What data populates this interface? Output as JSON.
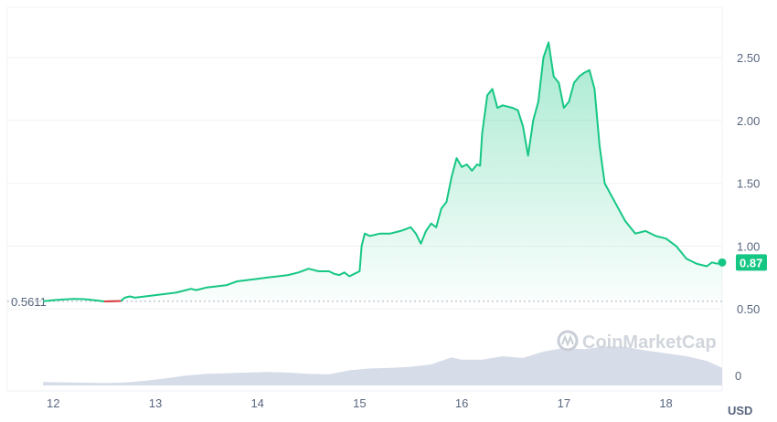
{
  "colors": {
    "up": "#16c784",
    "down": "#ea3943",
    "fill_top": "#16c784",
    "volume": "#cfd6e4",
    "grid": "#eff2f5",
    "axis_text": "#58667e",
    "watermark": "#c9ced6"
  },
  "watermark": {
    "text": "CoinMarketCap",
    "icon": "coinmarketcap-logo-icon"
  },
  "chart_data": {
    "type": "area",
    "currency_label": "USD",
    "open_price": 0.5611,
    "open_price_label": "0.5611",
    "current_price": 0.87,
    "current_price_label": "0.87",
    "x_ticks": [
      {
        "value": 12,
        "label": "12"
      },
      {
        "value": 13,
        "label": "13"
      },
      {
        "value": 14,
        "label": "14"
      },
      {
        "value": 15,
        "label": "15"
      },
      {
        "value": 16,
        "label": "16"
      },
      {
        "value": 17,
        "label": "17"
      },
      {
        "value": 18,
        "label": "18"
      }
    ],
    "y_ticks": [
      {
        "value": 0.5,
        "label": "0.50"
      },
      {
        "value": 1.0,
        "label": "1.00"
      },
      {
        "value": 1.5,
        "label": "1.50"
      },
      {
        "value": 2.0,
        "label": "2.00"
      },
      {
        "value": 2.5,
        "label": "2.50"
      }
    ],
    "volume_axis_label": "0",
    "xlim": [
      11.55,
      18.55
    ],
    "ylim": [
      0.4,
      2.9
    ],
    "grid": true,
    "price": [
      [
        11.9,
        0.5611
      ],
      [
        11.95,
        0.565
      ],
      [
        12.0,
        0.57
      ],
      [
        12.1,
        0.575
      ],
      [
        12.2,
        0.58
      ],
      [
        12.3,
        0.578
      ],
      [
        12.4,
        0.57
      ],
      [
        12.5,
        0.56
      ],
      [
        12.6,
        0.562
      ],
      [
        12.66,
        0.563
      ],
      [
        12.7,
        0.59
      ],
      [
        12.75,
        0.6
      ],
      [
        12.8,
        0.59
      ],
      [
        12.9,
        0.6
      ],
      [
        13.0,
        0.61
      ],
      [
        13.1,
        0.62
      ],
      [
        13.2,
        0.63
      ],
      [
        13.3,
        0.65
      ],
      [
        13.35,
        0.66
      ],
      [
        13.4,
        0.65
      ],
      [
        13.5,
        0.67
      ],
      [
        13.6,
        0.68
      ],
      [
        13.7,
        0.69
      ],
      [
        13.8,
        0.72
      ],
      [
        13.9,
        0.73
      ],
      [
        14.0,
        0.74
      ],
      [
        14.1,
        0.75
      ],
      [
        14.2,
        0.76
      ],
      [
        14.3,
        0.77
      ],
      [
        14.4,
        0.79
      ],
      [
        14.5,
        0.82
      ],
      [
        14.6,
        0.8
      ],
      [
        14.7,
        0.8
      ],
      [
        14.75,
        0.78
      ],
      [
        14.8,
        0.77
      ],
      [
        14.85,
        0.79
      ],
      [
        14.9,
        0.76
      ],
      [
        14.95,
        0.78
      ],
      [
        15.0,
        0.8
      ],
      [
        15.02,
        1.0
      ],
      [
        15.05,
        1.1
      ],
      [
        15.1,
        1.08
      ],
      [
        15.2,
        1.1
      ],
      [
        15.3,
        1.1
      ],
      [
        15.4,
        1.12
      ],
      [
        15.5,
        1.15
      ],
      [
        15.55,
        1.1
      ],
      [
        15.6,
        1.02
      ],
      [
        15.65,
        1.12
      ],
      [
        15.7,
        1.18
      ],
      [
        15.75,
        1.15
      ],
      [
        15.8,
        1.3
      ],
      [
        15.85,
        1.35
      ],
      [
        15.9,
        1.55
      ],
      [
        15.95,
        1.7
      ],
      [
        16.0,
        1.63
      ],
      [
        16.05,
        1.65
      ],
      [
        16.1,
        1.6
      ],
      [
        16.15,
        1.65
      ],
      [
        16.18,
        1.64
      ],
      [
        16.2,
        1.9
      ],
      [
        16.25,
        2.2
      ],
      [
        16.3,
        2.25
      ],
      [
        16.35,
        2.1
      ],
      [
        16.4,
        2.12
      ],
      [
        16.5,
        2.1
      ],
      [
        16.55,
        2.08
      ],
      [
        16.6,
        1.95
      ],
      [
        16.65,
        1.72
      ],
      [
        16.7,
        2.0
      ],
      [
        16.75,
        2.15
      ],
      [
        16.8,
        2.5
      ],
      [
        16.85,
        2.62
      ],
      [
        16.9,
        2.35
      ],
      [
        16.95,
        2.3
      ],
      [
        17.0,
        2.1
      ],
      [
        17.05,
        2.15
      ],
      [
        17.1,
        2.3
      ],
      [
        17.15,
        2.35
      ],
      [
        17.2,
        2.38
      ],
      [
        17.25,
        2.4
      ],
      [
        17.3,
        2.25
      ],
      [
        17.35,
        1.8
      ],
      [
        17.4,
        1.5
      ],
      [
        17.5,
        1.35
      ],
      [
        17.6,
        1.2
      ],
      [
        17.7,
        1.1
      ],
      [
        17.8,
        1.12
      ],
      [
        17.9,
        1.08
      ],
      [
        18.0,
        1.06
      ],
      [
        18.1,
        1.0
      ],
      [
        18.15,
        0.95
      ],
      [
        18.2,
        0.9
      ],
      [
        18.25,
        0.88
      ],
      [
        18.3,
        0.86
      ],
      [
        18.4,
        0.84
      ],
      [
        18.45,
        0.87
      ],
      [
        18.5,
        0.86
      ],
      [
        18.55,
        0.87
      ]
    ],
    "volume": [
      [
        11.9,
        0.06
      ],
      [
        12.2,
        0.05
      ],
      [
        12.5,
        0.04
      ],
      [
        12.7,
        0.05
      ],
      [
        12.9,
        0.08
      ],
      [
        13.1,
        0.12
      ],
      [
        13.3,
        0.17
      ],
      [
        13.5,
        0.2
      ],
      [
        13.7,
        0.21
      ],
      [
        13.9,
        0.22
      ],
      [
        14.1,
        0.23
      ],
      [
        14.3,
        0.22
      ],
      [
        14.5,
        0.2
      ],
      [
        14.7,
        0.19
      ],
      [
        14.9,
        0.26
      ],
      [
        15.1,
        0.29
      ],
      [
        15.3,
        0.3
      ],
      [
        15.5,
        0.32
      ],
      [
        15.7,
        0.36
      ],
      [
        15.9,
        0.48
      ],
      [
        16.0,
        0.44
      ],
      [
        16.2,
        0.44
      ],
      [
        16.4,
        0.5
      ],
      [
        16.6,
        0.47
      ],
      [
        16.8,
        0.58
      ],
      [
        17.0,
        0.64
      ],
      [
        17.2,
        0.62
      ],
      [
        17.4,
        0.67
      ],
      [
        17.6,
        0.66
      ],
      [
        17.8,
        0.6
      ],
      [
        18.0,
        0.55
      ],
      [
        18.2,
        0.5
      ],
      [
        18.4,
        0.42
      ],
      [
        18.55,
        0.3
      ]
    ]
  }
}
